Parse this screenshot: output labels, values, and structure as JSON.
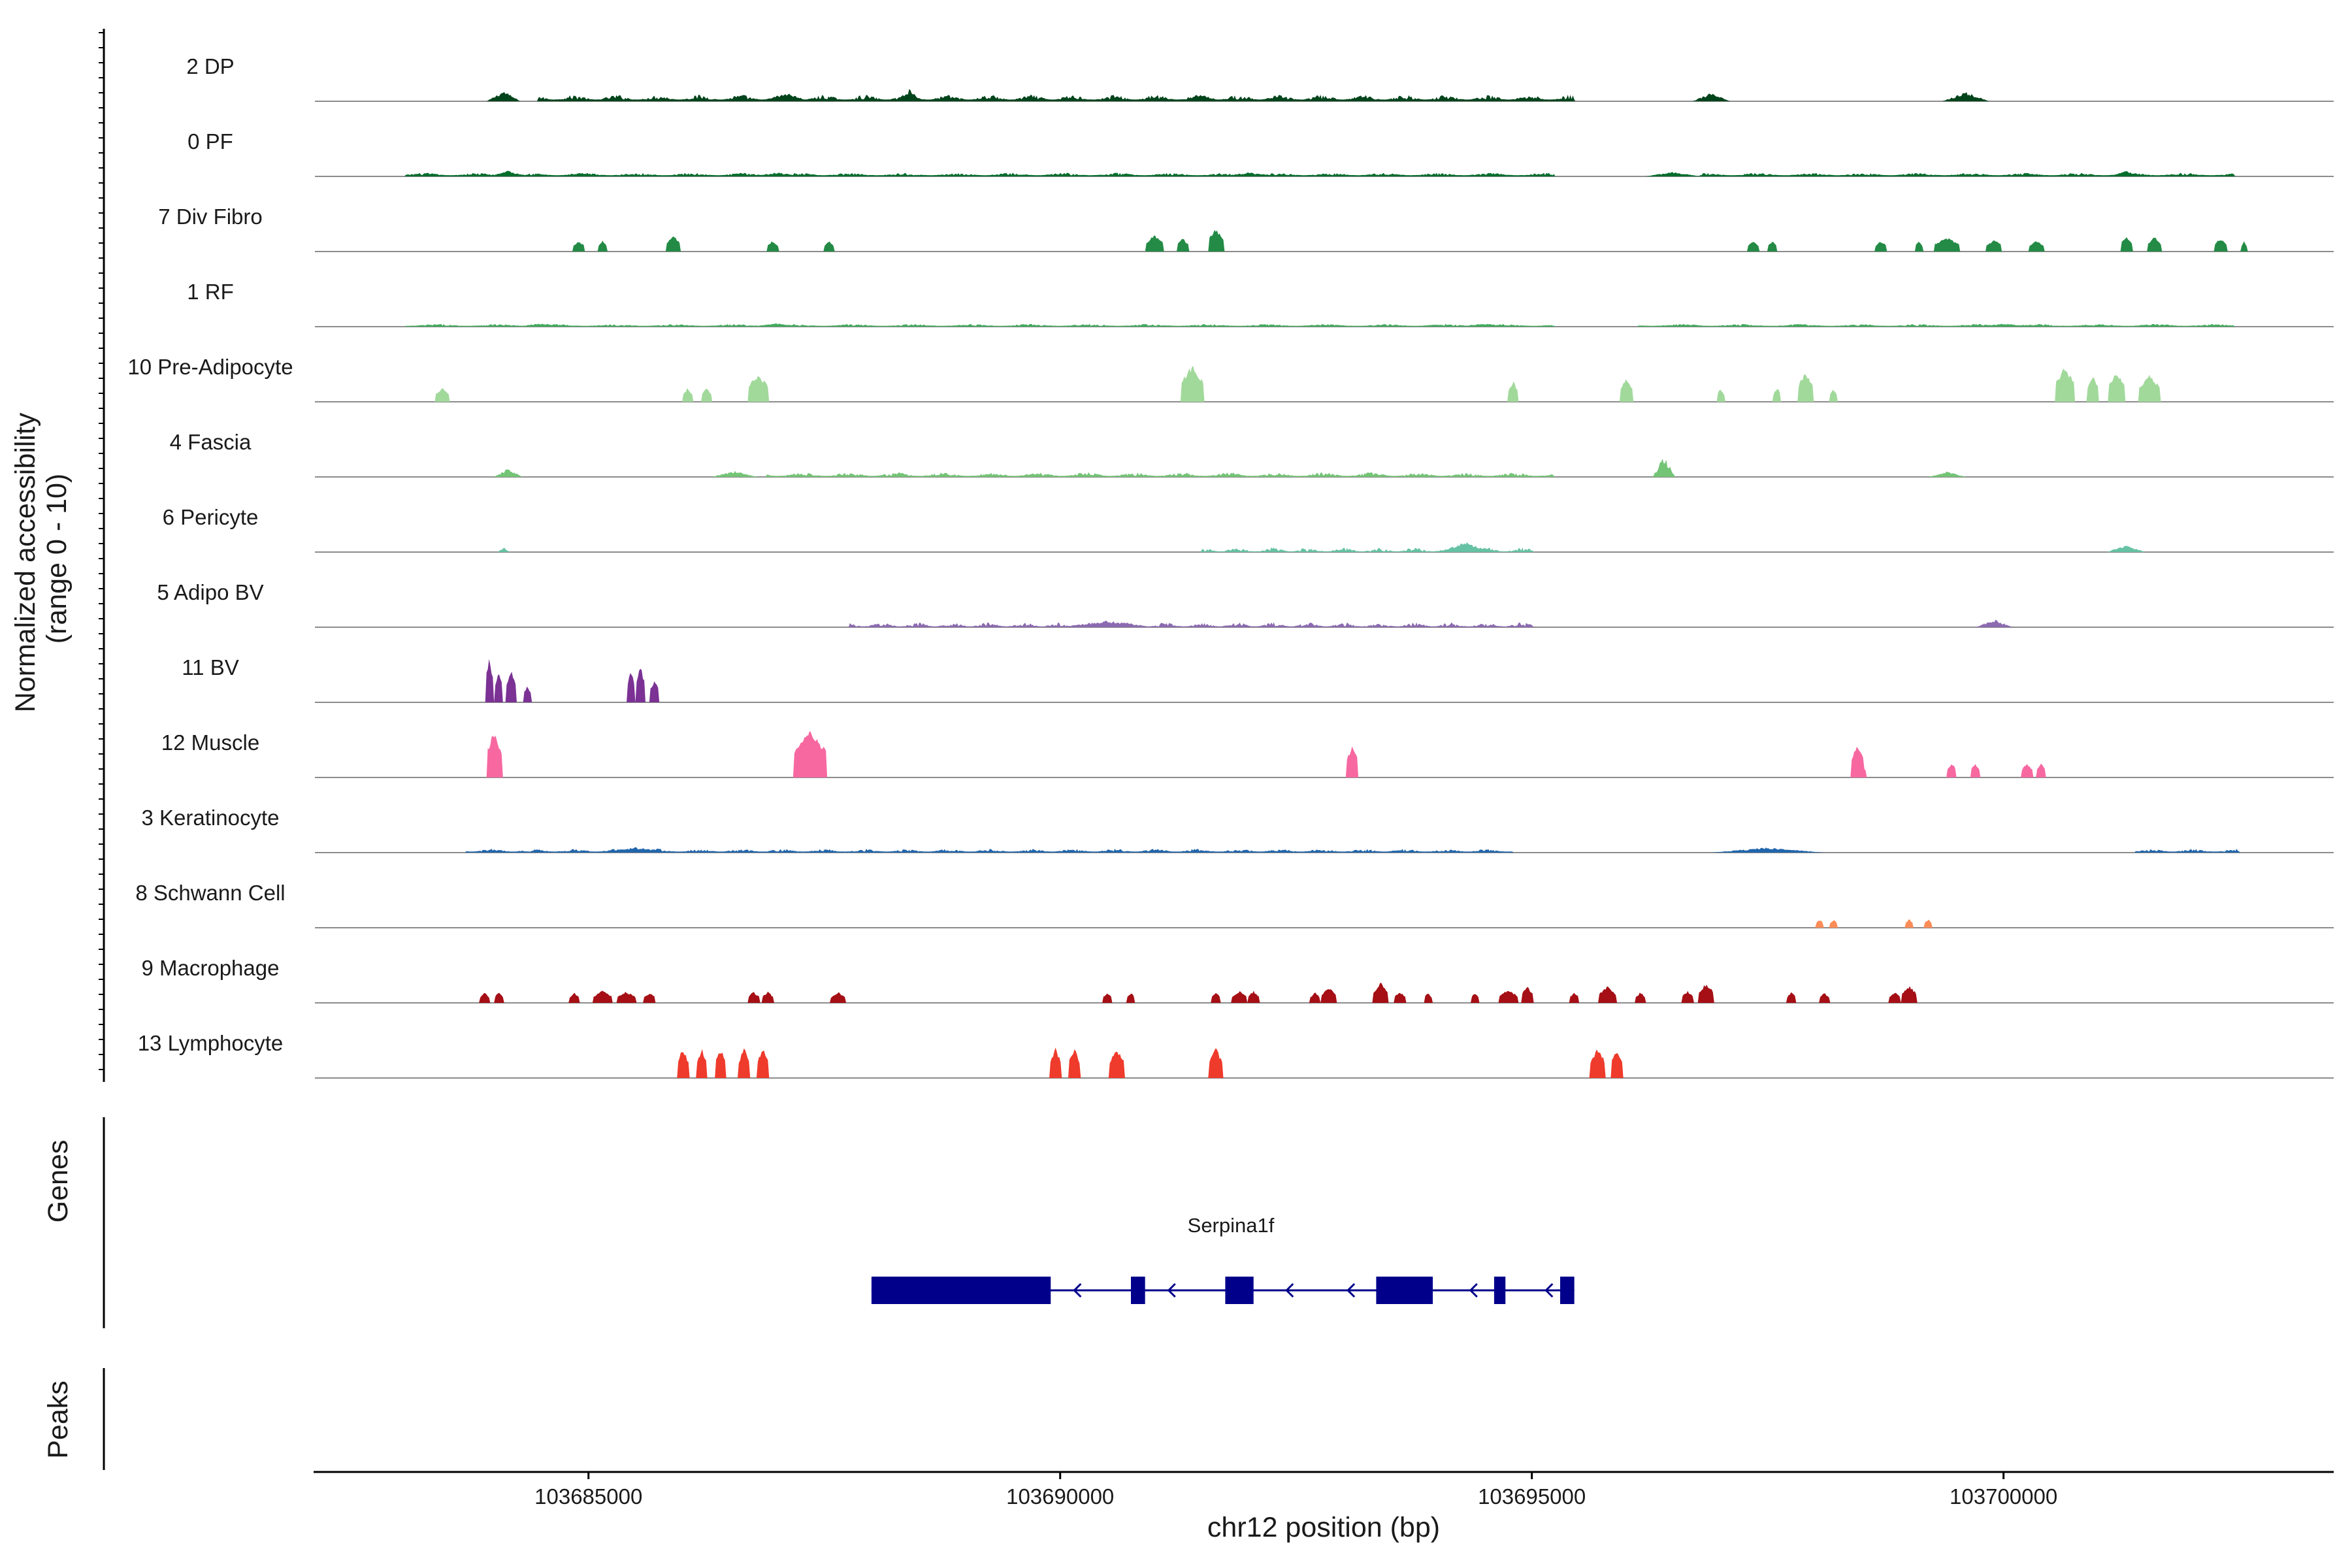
{
  "chart_data": {
    "type": "area",
    "title": "",
    "chromosome": "chr12",
    "xlabel": "chr12 position (bp)",
    "ylabel": [
      "Normalized accessibility",
      "(range 0 - 10)"
    ],
    "ylim": [
      0,
      10
    ],
    "xlim": [
      103682100,
      103703500
    ],
    "x_ticks": [
      103685000,
      103690000,
      103695000,
      103700000
    ],
    "x_tick_labels": [
      "103685000",
      "103690000",
      "103695000",
      "103700000"
    ],
    "panel_labels": {
      "genes": "Genes",
      "peaks": "Peaks"
    },
    "tracks": [
      {
        "name": "2 DP",
        "color": "#00441b",
        "mode": "noise",
        "base": 0.5,
        "amp": 1.2,
        "spread": 70,
        "gaps": 0.4,
        "start": 103683050,
        "end": 103702450,
        "peaks": [
          [
            103684100,
            1.6,
            180
          ],
          [
            103687100,
            1.3,
            250
          ],
          [
            103688400,
            1.8,
            150
          ],
          [
            103691500,
            1.2,
            200
          ],
          [
            103696900,
            1.3,
            200
          ],
          [
            103699600,
            1.4,
            250
          ]
        ]
      },
      {
        "name": "0 PF",
        "color": "#006d2c",
        "mode": "noise",
        "base": 0.35,
        "amp": 0.6,
        "spread": 90,
        "gaps": 0.08,
        "start": 103683050,
        "end": 103702450,
        "peaks": [
          [
            103684150,
            0.9,
            200
          ],
          [
            103687000,
            0.6,
            300
          ],
          [
            103692000,
            0.6,
            300
          ],
          [
            103696500,
            0.7,
            300
          ],
          [
            103701300,
            0.8,
            200
          ]
        ]
      },
      {
        "name": "7 Div Fibro",
        "color": "#238b45",
        "mode": "peaks",
        "start": 103682100,
        "end": 103703500,
        "peaks": [
          [
            103684900,
            1.6,
            60
          ],
          [
            103685150,
            1.6,
            50
          ],
          [
            103685900,
            2.4,
            70
          ],
          [
            103686950,
            1.6,
            60
          ],
          [
            103687550,
            1.6,
            50
          ],
          [
            103691000,
            2.5,
            90
          ],
          [
            103691300,
            2.0,
            60
          ],
          [
            103691650,
            3.5,
            80
          ],
          [
            103697350,
            1.6,
            60
          ],
          [
            103697550,
            1.6,
            50
          ],
          [
            103698700,
            1.6,
            60
          ],
          [
            103699100,
            1.6,
            40
          ],
          [
            103699400,
            2.1,
            130
          ],
          [
            103699900,
            1.8,
            80
          ],
          [
            103700350,
            1.6,
            80
          ],
          [
            103701300,
            2.2,
            60
          ],
          [
            103701600,
            2.2,
            70
          ],
          [
            103702300,
            2.0,
            70
          ],
          [
            103702550,
            1.5,
            30
          ]
        ]
      },
      {
        "name": "1 RF",
        "color": "#41ab5d",
        "mode": "noise",
        "base": 0.25,
        "amp": 0.45,
        "spread": 100,
        "gaps": 0.05,
        "start": 103683050,
        "end": 103702450,
        "peaks": [
          [
            103684500,
            0.5,
            300
          ],
          [
            103687000,
            0.5,
            300
          ],
          [
            103694500,
            0.5,
            300
          ],
          [
            103700000,
            0.5,
            300
          ]
        ]
      },
      {
        "name": "10 Pre-Adipocyte",
        "color": "#a1d99b",
        "mode": "peaks",
        "start": 103682100,
        "end": 103703500,
        "peaks": [
          [
            103683450,
            2.2,
            70
          ],
          [
            103686050,
            2.1,
            50
          ],
          [
            103686250,
            2.1,
            50
          ],
          [
            103686800,
            4.2,
            110
          ],
          [
            103691400,
            5.5,
            120
          ],
          [
            103694800,
            3.2,
            50
          ],
          [
            103696000,
            3.5,
            70
          ],
          [
            103697000,
            2.1,
            40
          ],
          [
            103697600,
            2.2,
            40
          ],
          [
            103697900,
            4.5,
            80
          ],
          [
            103698200,
            2.0,
            40
          ],
          [
            103700650,
            5.3,
            100
          ],
          [
            103700950,
            4.0,
            60
          ],
          [
            103701200,
            4.5,
            90
          ],
          [
            103701550,
            4.0,
            110
          ]
        ]
      },
      {
        "name": "4 Fascia",
        "color": "#74c476",
        "mode": "noise",
        "base": 0.3,
        "amp": 0.9,
        "spread": 80,
        "gaps": 0.55,
        "start": 103683050,
        "end": 103702450,
        "peaks": [
          [
            103684150,
            1.3,
            150
          ],
          [
            103686550,
            0.9,
            250
          ],
          [
            103696400,
            3.3,
            120
          ],
          [
            103699400,
            0.9,
            200
          ]
        ]
      },
      {
        "name": "6 Pericyte",
        "color": "#66c2a4",
        "mode": "noise",
        "base": 0.2,
        "amp": 1.0,
        "spread": 60,
        "gaps": 0.8,
        "start": 103683050,
        "end": 103702450,
        "peaks": [
          [
            103684100,
            0.8,
            60
          ],
          [
            103694300,
            1.5,
            300
          ],
          [
            103701300,
            1.2,
            200
          ]
        ]
      },
      {
        "name": "5 Adipo BV",
        "color": "#8c6bb1",
        "mode": "noise",
        "base": 0.25,
        "amp": 1.0,
        "spread": 60,
        "gaps": 0.6,
        "start": 103684500,
        "end": 103702550,
        "peaks": [
          [
            103690500,
            1.0,
            500
          ],
          [
            103699900,
            1.2,
            200
          ]
        ]
      },
      {
        "name": "11 BV",
        "color": "#7b3294",
        "mode": "peaks",
        "start": 103682100,
        "end": 103703500,
        "peaks": [
          [
            103683950,
            6.8,
            40
          ],
          [
            103684050,
            4.5,
            40
          ],
          [
            103684180,
            5.0,
            50
          ],
          [
            103684350,
            2.5,
            40
          ],
          [
            103685450,
            4.8,
            40
          ],
          [
            103685550,
            5.5,
            50
          ],
          [
            103685700,
            3.5,
            50
          ]
        ]
      },
      {
        "name": "12 Muscle",
        "color": "#f768a1",
        "mode": "peaks",
        "start": 103682100,
        "end": 103703500,
        "peaks": [
          [
            103684000,
            7.0,
            80
          ],
          [
            103687350,
            7.0,
            180
          ],
          [
            103693100,
            5.0,
            60
          ],
          [
            103698450,
            5.0,
            70
          ],
          [
            103698500,
            2.0,
            40
          ],
          [
            103699450,
            2.2,
            50
          ],
          [
            103699700,
            2.2,
            50
          ],
          [
            103700250,
            2.2,
            60
          ],
          [
            103700400,
            2.2,
            50
          ]
        ]
      },
      {
        "name": "3 Keratinocyte",
        "color": "#2166ac",
        "mode": "noise",
        "base": 0.3,
        "amp": 0.7,
        "spread": 70,
        "gaps": 0.35,
        "start": 103683700,
        "end": 103702500,
        "peaks": [
          [
            103685500,
            0.8,
            400
          ],
          [
            103697500,
            0.8,
            600
          ]
        ]
      },
      {
        "name": "8 Schwann Cell",
        "color": "#fc8d59",
        "mode": "peaks",
        "start": 103682100,
        "end": 103703500,
        "peaks": [
          [
            103698050,
            1.3,
            40
          ],
          [
            103698200,
            1.3,
            40
          ],
          [
            103699000,
            1.3,
            40
          ],
          [
            103699200,
            1.3,
            40
          ]
        ]
      },
      {
        "name": "9 Macrophage",
        "color": "#a50f15",
        "mode": "peaks",
        "start": 103682100,
        "end": 103703500,
        "peaks": [
          [
            103683900,
            1.6,
            50
          ],
          [
            103684050,
            1.6,
            50
          ],
          [
            103684850,
            1.6,
            50
          ],
          [
            103685150,
            1.8,
            100
          ],
          [
            103685400,
            1.7,
            100
          ],
          [
            103685650,
            1.6,
            60
          ],
          [
            103686750,
            1.7,
            60
          ],
          [
            103686900,
            1.7,
            60
          ],
          [
            103687650,
            1.6,
            80
          ],
          [
            103690500,
            1.6,
            50
          ],
          [
            103690750,
            1.6,
            40
          ],
          [
            103691650,
            1.6,
            50
          ],
          [
            103691900,
            1.8,
            80
          ],
          [
            103692050,
            1.8,
            60
          ],
          [
            103692700,
            1.6,
            50
          ],
          [
            103692850,
            2.4,
            80
          ],
          [
            103693400,
            3.1,
            80
          ],
          [
            103693600,
            1.7,
            60
          ],
          [
            103693900,
            1.6,
            40
          ],
          [
            103694400,
            1.6,
            40
          ],
          [
            103694750,
            2.0,
            100
          ],
          [
            103694950,
            2.5,
            60
          ],
          [
            103695450,
            1.6,
            50
          ],
          [
            103695800,
            2.5,
            90
          ],
          [
            103696150,
            1.6,
            50
          ],
          [
            103696650,
            1.8,
            60
          ],
          [
            103696850,
            3.0,
            80
          ],
          [
            103697750,
            1.6,
            50
          ],
          [
            103698100,
            1.6,
            50
          ],
          [
            103698850,
            1.6,
            60
          ],
          [
            103699000,
            2.6,
            80
          ]
        ]
      },
      {
        "name": "13 Lymphocyte",
        "color": "#ef3b2c",
        "mode": "peaks",
        "start": 103682100,
        "end": 103703500,
        "peaks": [
          [
            103686000,
            4.5,
            60
          ],
          [
            103686200,
            4.5,
            50
          ],
          [
            103686400,
            4.5,
            60
          ],
          [
            103686650,
            4.5,
            60
          ],
          [
            103686850,
            4.5,
            60
          ],
          [
            103689950,
            4.5,
            60
          ],
          [
            103690150,
            4.5,
            60
          ],
          [
            103690600,
            4.5,
            80
          ],
          [
            103691650,
            4.5,
            70
          ],
          [
            103695700,
            4.5,
            80
          ],
          [
            103695900,
            4.5,
            60
          ]
        ]
      }
    ],
    "gene": {
      "name": "Serpina1f",
      "strand": "-",
      "color": "#00008b",
      "start": 103688000,
      "end": 103695450,
      "exons": [
        [
          103688000,
          103689900
        ],
        [
          103690750,
          103690900
        ],
        [
          103691750,
          103692050
        ],
        [
          103693350,
          103693950
        ],
        [
          103694600,
          103694720
        ],
        [
          103695300,
          103695450
        ]
      ],
      "direction_marks": [
        103690150,
        103691150,
        103692400,
        103693050,
        103694350,
        103695150
      ]
    }
  }
}
